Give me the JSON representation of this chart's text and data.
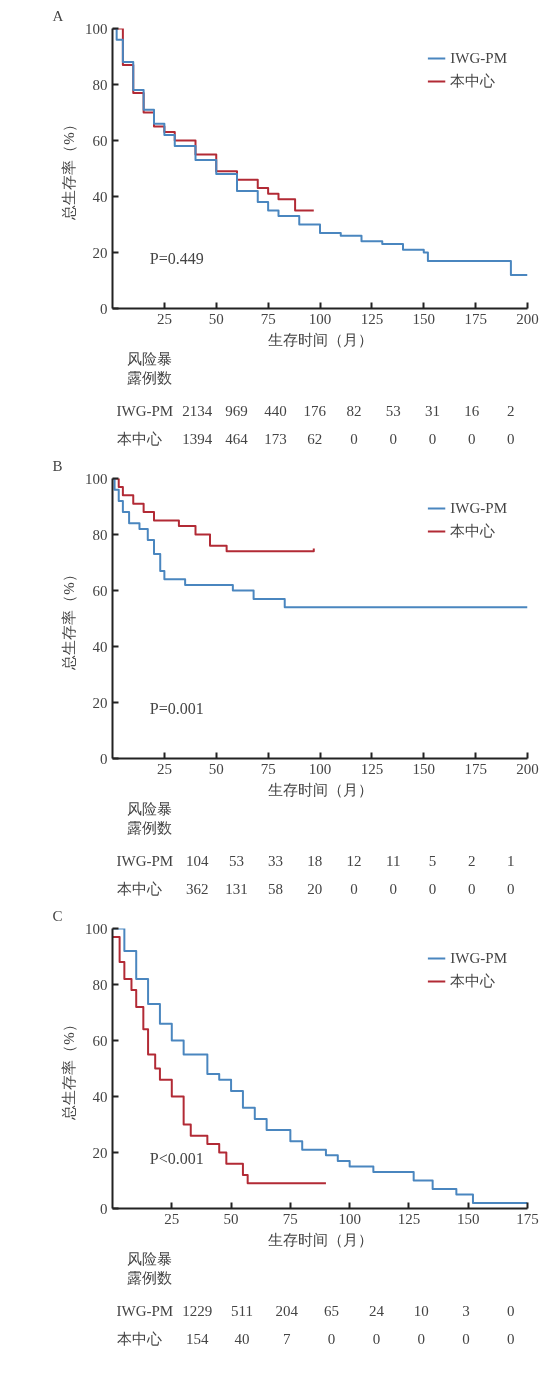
{
  "chart_data": [
    {
      "type": "step",
      "title": "A",
      "xlabel": "生存时间（月）",
      "ylabel": "总生存率（%）",
      "xlim": [
        0,
        200
      ],
      "ylim": [
        0,
        100
      ],
      "xticks": [
        25,
        50,
        75,
        100,
        125,
        150,
        175,
        200
      ],
      "yticks": [
        0,
        20,
        40,
        60,
        80,
        100
      ],
      "grid": false,
      "legend": "top right",
      "series": [
        {
          "name": "IWG-PM",
          "color": "#4a86bf",
          "x": [
            0,
            2,
            5,
            10,
            15,
            20,
            25,
            30,
            40,
            50,
            60,
            70,
            75,
            80,
            90,
            100,
            110,
            120,
            130,
            140,
            150,
            152,
            175,
            190,
            192,
            200
          ],
          "values": [
            100,
            96,
            88,
            78,
            71,
            66,
            62,
            58,
            53,
            48,
            42,
            38,
            35,
            33,
            30,
            27,
            26,
            24,
            23,
            21,
            20,
            17,
            17,
            17,
            12,
            12
          ]
        },
        {
          "name": "本中心",
          "color": "#b22a35",
          "x": [
            0,
            5,
            10,
            15,
            20,
            25,
            30,
            40,
            50,
            60,
            70,
            75,
            80,
            86,
            88,
            97
          ],
          "values": [
            100,
            87,
            77,
            70,
            65,
            63,
            60,
            55,
            49,
            46,
            43,
            41,
            39,
            39,
            35,
            35
          ]
        }
      ],
      "annotations": [
        "P=0.449",
        "风险暴露例数",
        "IWG-PM 2134 969 440 176 82 53 31 16 2",
        "本中心 1394 464 173 62 0 0 0 0 0"
      ]
    },
    {
      "type": "step",
      "title": "B",
      "xlabel": "生存时间（月）",
      "ylabel": "总生存率（%）",
      "xlim": [
        0,
        200
      ],
      "ylim": [
        0,
        100
      ],
      "xticks": [
        25,
        50,
        75,
        100,
        125,
        150,
        175,
        200
      ],
      "yticks": [
        0,
        20,
        40,
        60,
        80,
        100
      ],
      "grid": false,
      "legend": "top right",
      "series": [
        {
          "name": "IWG-PM",
          "color": "#4a86bf",
          "x": [
            0,
            1,
            3,
            5,
            8,
            13,
            17,
            20,
            23,
            25,
            35,
            57,
            58,
            68,
            82,
            83,
            200
          ],
          "values": [
            100,
            96,
            92,
            88,
            84,
            82,
            78,
            73,
            67,
            64,
            62,
            62,
            60,
            57,
            57,
            54,
            54
          ]
        },
        {
          "name": "本中心",
          "color": "#b22a35",
          "x": [
            0,
            3,
            5,
            10,
            15,
            20,
            30,
            32,
            40,
            47,
            55,
            97
          ],
          "values": [
            100,
            97,
            94,
            91,
            88,
            85,
            85,
            83,
            80,
            76,
            74,
            75
          ]
        }
      ],
      "annotations": [
        "P=0.001",
        "风险暴露例数",
        "IWG-PM 104 53 33 18 12 11 5 2 1",
        "本中心 362 131 58 20 0 0 0 0 0"
      ]
    },
    {
      "type": "step",
      "title": "C",
      "xlabel": "生存时间（月）",
      "ylabel": "总生存率（%）",
      "xlim": [
        0,
        175
      ],
      "ylim": [
        0,
        100
      ],
      "xticks": [
        25,
        50,
        75,
        100,
        125,
        150,
        175
      ],
      "yticks": [
        0,
        20,
        40,
        60,
        80,
        100
      ],
      "grid": false,
      "legend": "top right",
      "series": [
        {
          "name": "IWG-PM",
          "color": "#4a86bf",
          "x": [
            0,
            5,
            10,
            15,
            20,
            25,
            30,
            40,
            45,
            50,
            55,
            60,
            65,
            75,
            80,
            90,
            95,
            100,
            110,
            125,
            127,
            135,
            145,
            152,
            175
          ],
          "values": [
            100,
            92,
            82,
            73,
            66,
            60,
            55,
            48,
            46,
            42,
            36,
            32,
            28,
            24,
            21,
            19,
            17,
            15,
            13,
            13,
            10,
            7,
            5,
            2,
            2
          ]
        },
        {
          "name": "本中心",
          "color": "#b22a35",
          "x": [
            0,
            3,
            5,
            8,
            10,
            13,
            15,
            18,
            20,
            25,
            30,
            33,
            40,
            45,
            48,
            55,
            57,
            90
          ],
          "values": [
            97,
            88,
            82,
            78,
            72,
            64,
            55,
            50,
            46,
            40,
            30,
            26,
            23,
            20,
            16,
            12,
            9,
            9
          ]
        }
      ],
      "annotations": [
        "P<0.001",
        "风险暴露例数",
        "IWG-PM 1229 511 204 65 24 10 3 0",
        "本中心 154 40 7 0 0 0 0 0"
      ]
    }
  ]
}
